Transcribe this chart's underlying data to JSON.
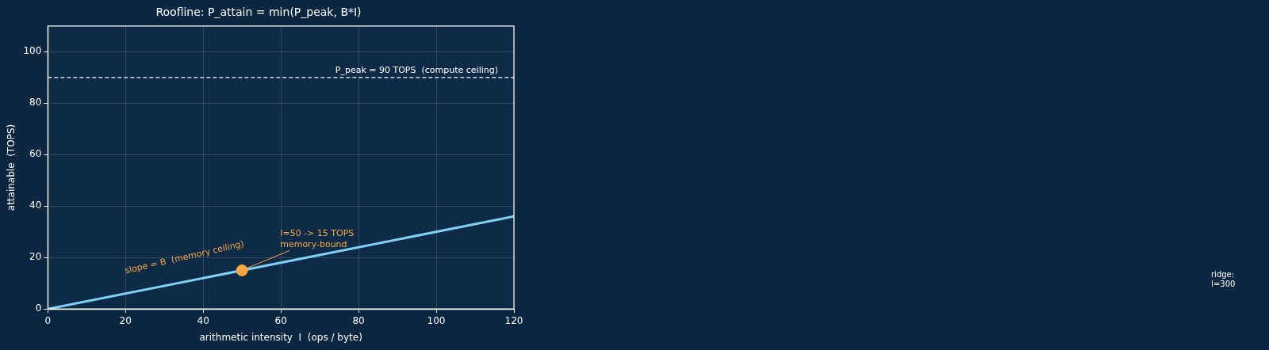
{
  "chart_data": {
    "type": "line",
    "title": "Roofline: P_attain = min(P_peak, B*I)",
    "xlabel": "arithmetic intensity  I  (ops / byte)",
    "ylabel": "attainable  (TOPS)",
    "xlim": [
      0,
      120
    ],
    "xticks": [
      0,
      20,
      40,
      60,
      80,
      100,
      120
    ],
    "ylim": [
      0,
      110
    ],
    "yticks": [
      0,
      20,
      40,
      60,
      80,
      100
    ],
    "grid": true,
    "legend": false,
    "series": [
      {
        "x": [
          0,
          120
        ],
        "values": [
          0,
          36
        ],
        "color": "#7fd0f7",
        "marker": "none"
      },
      {
        "type": "scatter",
        "x": [
          50
        ],
        "values": [
          15
        ],
        "color": "#f5a742",
        "marker": "circle"
      }
    ],
    "ref_lines": [
      {
        "axis": "y",
        "value": 90,
        "label": "P_peak = 90 TOPS  (compute ceiling)",
        "color": "#ffffff",
        "line_style": "dashed"
      }
    ],
    "annotations": [
      "slope = B  (memory ceiling)",
      {
        "text": "I=50 -> 15 TOPS\nmemory-bound",
        "x": 50,
        "y": 15
      },
      "ridge:\nI=300"
    ]
  }
}
